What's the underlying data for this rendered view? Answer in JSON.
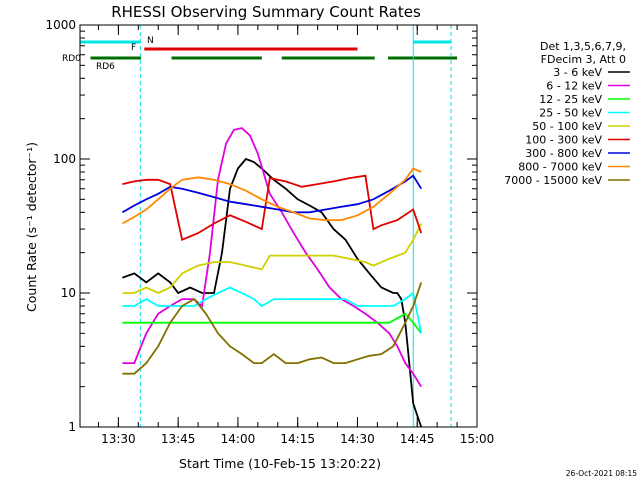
{
  "chart_data": {
    "type": "line",
    "title": "RHESSI Observing Summary Count Rates",
    "xlabel": "Start Time (10-Feb-15 13:20:22)",
    "ylabel": "Count Rate (s⁻¹ detector⁻¹)",
    "xlim": [
      "13:20:22",
      "15:00:00"
    ],
    "ylim": [
      1,
      1000
    ],
    "yscale": "log",
    "x_ticks": [
      "13:30",
      "13:45",
      "14:00",
      "14:15",
      "14:30",
      "14:45",
      "15:00"
    ],
    "y_ticks": [
      "1",
      "10",
      "100",
      "1000"
    ],
    "grid": false,
    "legend_position": "right",
    "legend_header": [
      "Det 1,3,5,6,7,9,",
      "FDecim 3, Att 0"
    ],
    "timestamp": "26-Oct-2021 08:15",
    "state_bars": [
      {
        "label": "N",
        "color": "#00e5e5",
        "segments": [
          [
            "13:20:22",
            "13:35:30"
          ],
          [
            "14:44:00",
            "14:53:30"
          ]
        ]
      },
      {
        "label": "F",
        "color": "#e00000",
        "segments": [
          [
            "13:36:30",
            "14:30:00"
          ]
        ]
      },
      {
        "label": "RD0",
        "color": "#006e00",
        "segments": [
          [
            "13:23:00",
            "13:35:40"
          ],
          [
            "13:43:20",
            "14:06:00"
          ],
          [
            "14:11:00",
            "14:34:20"
          ],
          [
            "14:37:40",
            "14:55:00"
          ]
        ]
      },
      {
        "label": "RD6",
        "color": "#006e00",
        "segments": []
      }
    ],
    "night_lines": [
      "13:35:30",
      "14:53:30"
    ],
    "day_lines": [
      "13:20:22",
      "14:44:00"
    ],
    "series": [
      {
        "name": "3 - 6 keV",
        "color": "#000000",
        "x": [
          "13:31:00",
          "13:34:00",
          "13:37:00",
          "13:40:00",
          "13:43:00",
          "13:45:00",
          "13:48:00",
          "13:51:00",
          "13:54:00",
          "13:56:00",
          "13:58:00",
          "14:00:00",
          "14:02:00",
          "14:04:00",
          "14:06:00",
          "14:09:00",
          "14:12:00",
          "14:15:00",
          "14:18:00",
          "14:21:00",
          "14:24:00",
          "14:27:00",
          "14:30:00",
          "14:33:00",
          "14:36:00",
          "14:39:00",
          "14:40:00",
          "14:41:00",
          "14:42:00",
          "14:44:00",
          "14:46:00"
        ],
        "y": [
          13,
          14,
          12,
          14,
          12,
          10,
          11,
          10,
          10,
          20,
          60,
          85,
          100,
          95,
          85,
          70,
          60,
          50,
          45,
          40,
          30,
          25,
          18,
          14,
          11,
          10,
          10,
          9,
          6,
          1.5,
          1
        ]
      },
      {
        "name": "6 - 12 keV",
        "color": "#e000e0",
        "x": [
          "13:31:00",
          "13:34:00",
          "13:37:00",
          "13:40:00",
          "13:43:00",
          "13:46:00",
          "13:49:00",
          "13:51:00",
          "13:53:00",
          "13:55:00",
          "13:57:00",
          "13:59:00",
          "14:01:00",
          "14:03:00",
          "14:05:00",
          "14:08:00",
          "14:11:00",
          "14:14:00",
          "14:17:00",
          "14:20:00",
          "14:23:00",
          "14:26:00",
          "14:29:00",
          "14:32:00",
          "14:35:00",
          "14:38:00",
          "14:40:00",
          "14:42:00",
          "14:44:00",
          "14:46:00"
        ],
        "y": [
          3,
          3,
          5,
          7,
          8,
          9,
          9,
          8,
          20,
          70,
          130,
          165,
          170,
          150,
          110,
          55,
          40,
          28,
          20,
          15,
          11,
          9,
          8,
          7,
          6,
          5,
          4,
          3,
          2.5,
          2
        ]
      },
      {
        "name": "12 - 25 keV",
        "color": "#00ff00",
        "x": [
          "13:31:00",
          "13:34:00",
          "13:37:00",
          "13:40:00",
          "13:43:00",
          "13:46:00",
          "13:50:00",
          "13:54:00",
          "13:58:00",
          "14:02:00",
          "14:06:00",
          "14:10:00",
          "14:14:00",
          "14:18:00",
          "14:22:00",
          "14:26:00",
          "14:30:00",
          "14:34:00",
          "14:38:00",
          "14:42:00",
          "14:44:00",
          "14:46:00"
        ],
        "y": [
          6,
          6,
          6,
          6,
          6,
          6,
          6,
          6,
          6,
          6,
          6,
          6,
          6,
          6,
          6,
          6,
          6,
          6,
          6,
          7,
          6,
          5
        ]
      },
      {
        "name": "25 - 50 keV",
        "color": "#00ffff",
        "x": [
          "13:31:00",
          "13:34:00",
          "13:37:00",
          "13:40:00",
          "13:43:00",
          "13:46:00",
          "13:49:00",
          "13:52:00",
          "13:55:00",
          "13:58:00",
          "14:01:00",
          "14:04:00",
          "14:06:00",
          "14:09:00",
          "14:12:00",
          "14:15:00",
          "14:18:00",
          "14:21:00",
          "14:24:00",
          "14:27:00",
          "14:30:00",
          "14:33:00",
          "14:36:00",
          "14:39:00",
          "14:42:00",
          "14:44:00",
          "14:46:00"
        ],
        "y": [
          8,
          8,
          9,
          8,
          8,
          8,
          8,
          9,
          10,
          11,
          10,
          9,
          8,
          9,
          9,
          9,
          9,
          9,
          9,
          9,
          8,
          8,
          8,
          8,
          9,
          10,
          5
        ]
      },
      {
        "name": "50 - 100 keV",
        "color": "#d0d000",
        "x": [
          "13:31:00",
          "13:34:00",
          "13:37:00",
          "13:40:00",
          "13:43:00",
          "13:46:00",
          "13:50:00",
          "13:54:00",
          "13:58:00",
          "14:02:00",
          "14:06:00",
          "14:08:00",
          "14:12:00",
          "14:16:00",
          "14:20:00",
          "14:24:00",
          "14:28:00",
          "14:32:00",
          "14:34:00",
          "14:38:00",
          "14:42:00",
          "14:44:00",
          "14:46:00"
        ],
        "y": [
          10,
          10,
          11,
          10,
          11,
          14,
          16,
          17,
          17,
          16,
          15,
          19,
          19,
          19,
          19,
          19,
          18,
          17,
          16,
          18,
          20,
          25,
          33
        ]
      },
      {
        "name": "100 - 300 keV",
        "color": "#e00000",
        "x": [
          "13:31:00",
          "13:34:00",
          "13:37:00",
          "13:40:00",
          "13:43:00",
          "13:46:00",
          "13:50:00",
          "13:54:00",
          "13:58:00",
          "14:02:00",
          "14:06:00",
          "14:08:00",
          "14:12:00",
          "14:16:00",
          "14:20:00",
          "14:24:00",
          "14:28:00",
          "14:32:00",
          "14:34:00",
          "14:36:00",
          "14:40:00",
          "14:44:00",
          "14:46:00"
        ],
        "y": [
          65,
          68,
          70,
          70,
          65,
          25,
          28,
          33,
          38,
          34,
          30,
          72,
          68,
          62,
          65,
          68,
          72,
          75,
          30,
          32,
          35,
          42,
          28
        ]
      },
      {
        "name": "300 - 800 keV",
        "color": "#0000e0",
        "x": [
          "13:31:00",
          "13:34:00",
          "13:37:00",
          "13:40:00",
          "13:43:00",
          "13:46:00",
          "13:50:00",
          "13:54:00",
          "13:58:00",
          "14:02:00",
          "14:06:00",
          "14:10:00",
          "14:14:00",
          "14:18:00",
          "14:22:00",
          "14:26:00",
          "14:30:00",
          "14:34:00",
          "14:38:00",
          "14:42:00",
          "14:44:00",
          "14:46:00"
        ],
        "y": [
          40,
          45,
          50,
          55,
          62,
          60,
          56,
          52,
          48,
          46,
          44,
          42,
          40,
          40,
          42,
          44,
          46,
          50,
          58,
          68,
          75,
          60
        ]
      },
      {
        "name": "800 - 7000 keV",
        "color": "#ff8800",
        "x": [
          "13:31:00",
          "13:34:00",
          "13:37:00",
          "13:40:00",
          "13:43:00",
          "13:46:00",
          "13:50:00",
          "13:54:00",
          "13:58:00",
          "14:02:00",
          "14:06:00",
          "14:10:00",
          "14:14:00",
          "14:18:00",
          "14:22:00",
          "14:26:00",
          "14:30:00",
          "14:34:00",
          "14:38:00",
          "14:42:00",
          "14:44:00",
          "14:46:00"
        ],
        "y": [
          33,
          37,
          42,
          50,
          60,
          70,
          73,
          70,
          65,
          58,
          50,
          44,
          40,
          36,
          35,
          35,
          38,
          44,
          55,
          70,
          85,
          80
        ]
      },
      {
        "name": "7000 - 15000 keV",
        "color": "#807000",
        "x": [
          "13:31:00",
          "13:34:00",
          "13:37:00",
          "13:40:00",
          "13:43:00",
          "13:46:00",
          "13:49:00",
          "13:52:00",
          "13:55:00",
          "13:58:00",
          "14:01:00",
          "14:04:00",
          "14:06:00",
          "14:09:00",
          "14:12:00",
          "14:15:00",
          "14:18:00",
          "14:21:00",
          "14:24:00",
          "14:27:00",
          "14:30:00",
          "14:33:00",
          "14:36:00",
          "14:39:00",
          "14:42:00",
          "14:44:00",
          "14:46:00"
        ],
        "y": [
          2.5,
          2.5,
          3,
          4,
          6,
          8,
          9,
          7,
          5,
          4,
          3.5,
          3,
          3,
          3.5,
          3,
          3,
          3.2,
          3.3,
          3,
          3,
          3.2,
          3.4,
          3.5,
          4,
          6,
          8,
          12
        ]
      }
    ]
  }
}
